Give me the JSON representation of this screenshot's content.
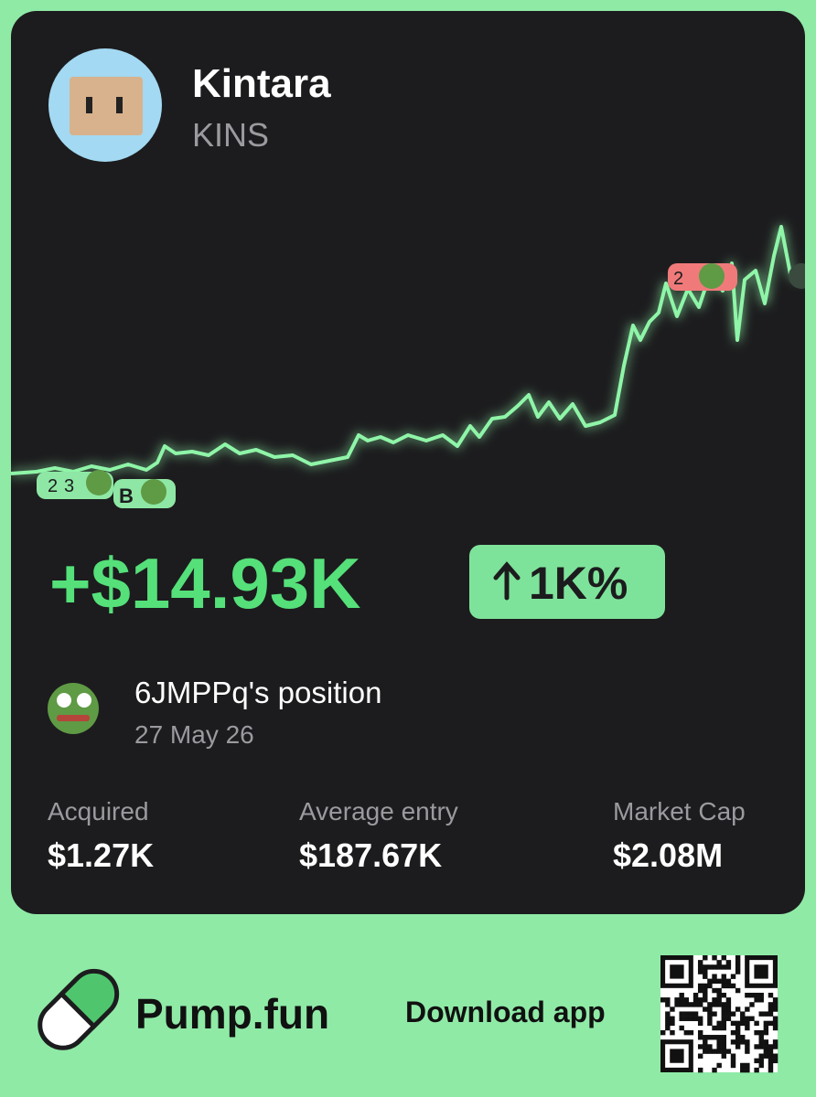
{
  "header": {
    "name": "Kintara",
    "ticker": "KINS"
  },
  "chart_markers": [
    "2",
    "3",
    "B",
    "2"
  ],
  "pnl": {
    "amount": "+$14.93K",
    "change": "1K%"
  },
  "position": {
    "owner": "6JMPPq's position",
    "date": "27 May 26"
  },
  "stats": [
    {
      "label": "Acquired",
      "value": "$1.27K"
    },
    {
      "label": "Average entry",
      "value": "$187.67K"
    },
    {
      "label": "Market Cap",
      "value": "$2.08M"
    }
  ],
  "footer": {
    "brand": "Pump.fun",
    "cta": "Download app"
  }
}
